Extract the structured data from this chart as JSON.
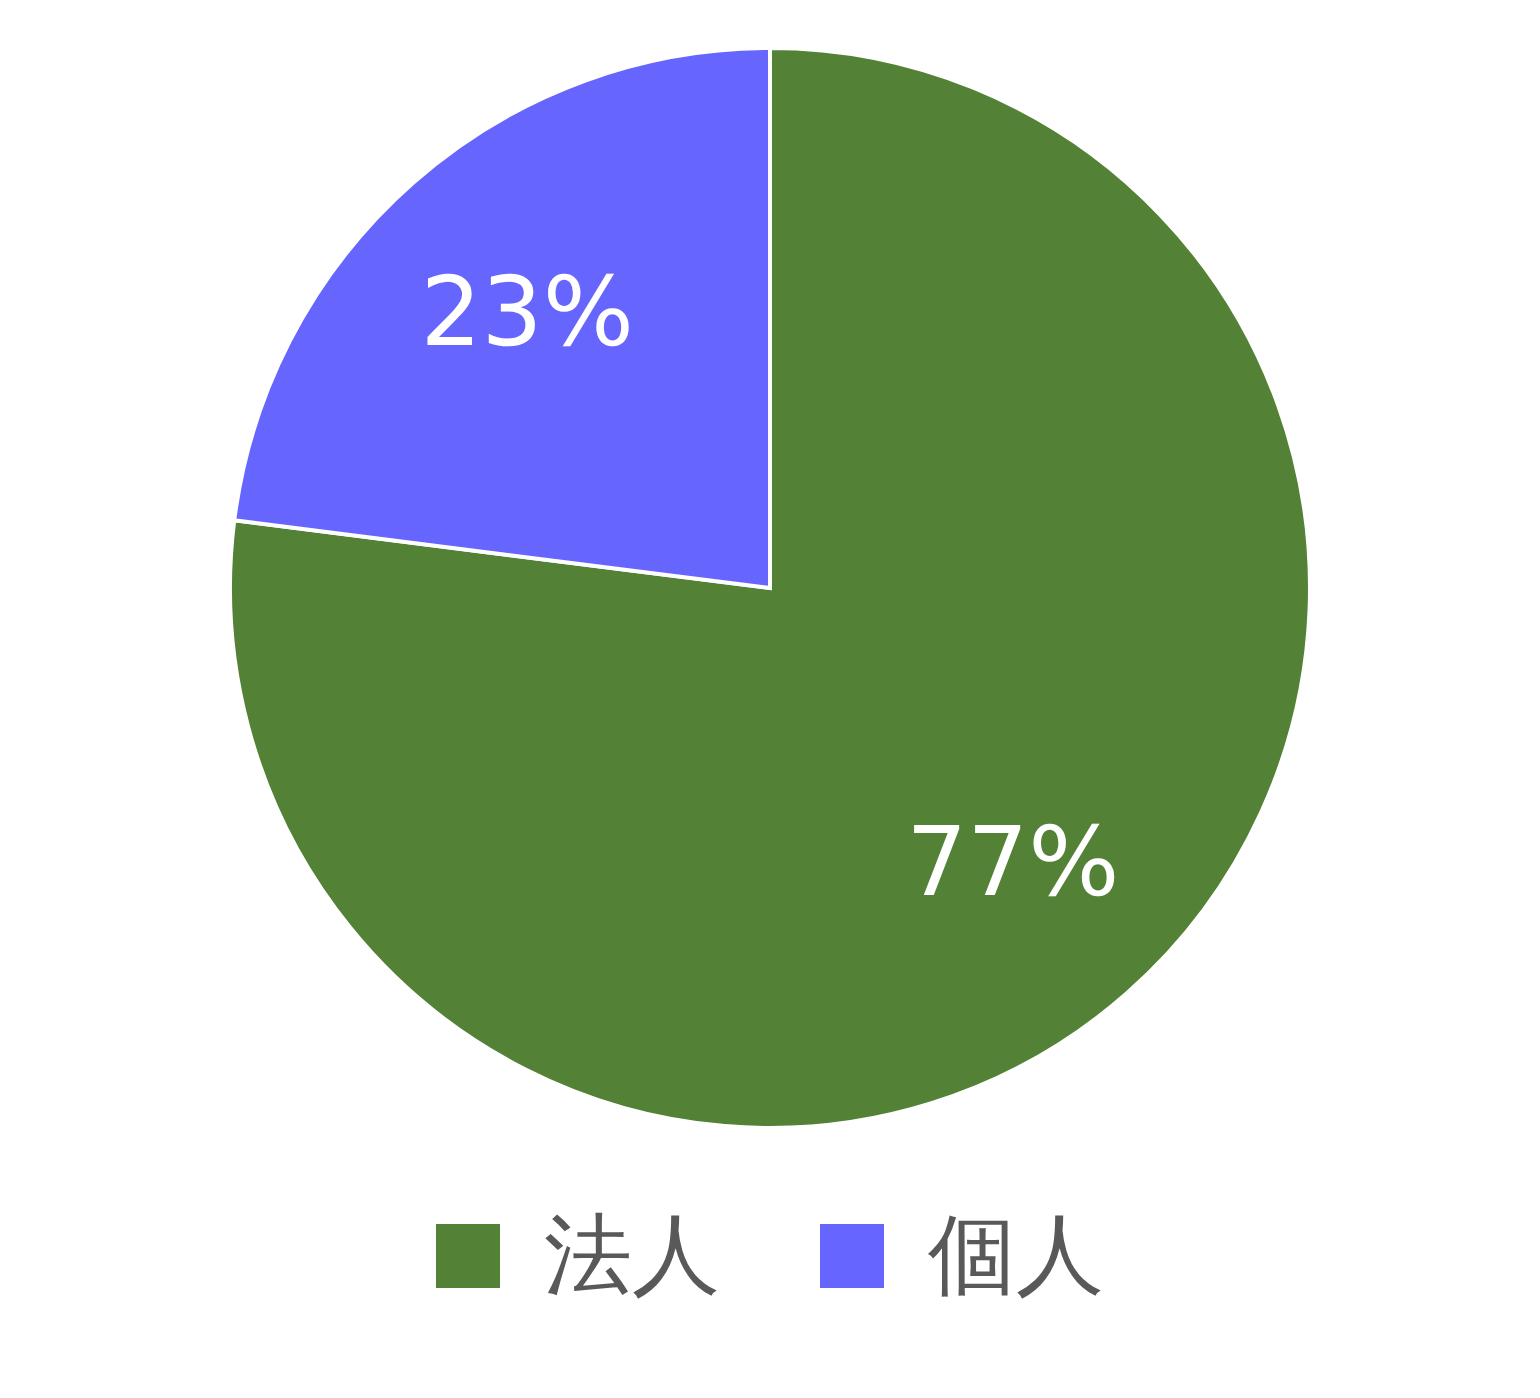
{
  "chart_data": {
    "type": "pie",
    "categories": [
      "法人",
      "個人"
    ],
    "values": [
      77,
      23
    ],
    "colors": [
      "#538135",
      "#6666ff"
    ],
    "value_labels": [
      "77%",
      "23%"
    ],
    "legend": "bottom"
  }
}
